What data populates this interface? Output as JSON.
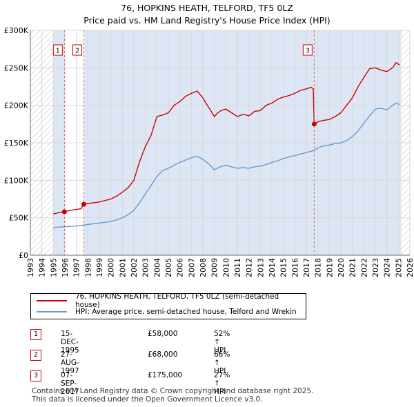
{
  "title": "76, HOPKINS HEATH, TELFORD, TF5 0LZ",
  "subtitle": "Price paid vs. HM Land Registry's House Price Index (HPI)",
  "colors": {
    "property": "#cc0000",
    "hpi": "#6699cc",
    "shade": "#dde6f5",
    "grid": "#d8d8d8",
    "marker_line": "#e06060"
  },
  "chart_data": {
    "type": "line",
    "title": "76, HOPKINS HEATH, TELFORD, TF5 0LZ",
    "subtitle": "Price paid vs. HM Land Registry's House Price Index (HPI)",
    "xlabel": "",
    "ylabel": "",
    "xlim": [
      1993.0,
      2026.0
    ],
    "ylim": [
      0,
      300000
    ],
    "x_ticks": [
      1993,
      1994,
      1995,
      1996,
      1997,
      1998,
      1999,
      2000,
      2001,
      2002,
      2003,
      2004,
      2005,
      2006,
      2007,
      2008,
      2009,
      2010,
      2011,
      2012,
      2013,
      2014,
      2015,
      2016,
      2017,
      2018,
      2019,
      2020,
      2021,
      2022,
      2023,
      2024,
      2025,
      2026
    ],
    "y_ticks": [
      0,
      50000,
      100000,
      150000,
      200000,
      250000,
      300000
    ],
    "y_tick_labels": [
      "£0",
      "£50K",
      "£100K",
      "£150K",
      "£200K",
      "£250K",
      "£300K"
    ],
    "hatched_ranges": [
      [
        1993.0,
        1995.0
      ],
      [
        2025.25,
        2026.0
      ]
    ],
    "shaded_ranges": [
      [
        1995.0,
        1995.96
      ],
      [
        1997.65,
        2017.68
      ],
      [
        2017.68,
        2025.25
      ]
    ],
    "grid": true,
    "series": [
      {
        "name": "76, HOPKINS HEATH, TELFORD, TF5 0LZ (semi-detached house)",
        "color": "#cc0000",
        "x": [
          1995.0,
          1995.5,
          1995.96,
          1996.5,
          1997.0,
          1997.4,
          1997.65,
          1998.0,
          1998.5,
          1999.0,
          1999.5,
          2000.0,
          2000.5,
          2001.0,
          2001.5,
          2002.0,
          2002.5,
          2003.0,
          2003.5,
          2004.0,
          2004.5,
          2005.0,
          2005.5,
          2006.0,
          2006.5,
          2007.0,
          2007.5,
          2008.0,
          2008.3,
          2008.6,
          2009.0,
          2009.3,
          2009.6,
          2010.0,
          2010.5,
          2011.0,
          2011.5,
          2012.0,
          2012.5,
          2013.0,
          2013.5,
          2014.0,
          2014.5,
          2015.0,
          2015.5,
          2016.0,
          2016.5,
          2017.0,
          2017.4,
          2017.6,
          2017.68,
          2018.0,
          2018.5,
          2019.0,
          2019.5,
          2020.0,
          2020.5,
          2021.0,
          2021.5,
          2022.0,
          2022.5,
          2023.0,
          2023.5,
          2024.0,
          2024.5,
          2024.8,
          2025.1
        ],
        "values": [
          55000,
          57000,
          58000,
          60000,
          61000,
          62000,
          68000,
          69000,
          70000,
          71000,
          73000,
          75000,
          79000,
          84000,
          90000,
          100000,
          125000,
          145000,
          160000,
          185000,
          187000,
          190000,
          200000,
          205000,
          212000,
          216000,
          219000,
          210000,
          202000,
          195000,
          185000,
          190000,
          193000,
          195000,
          190000,
          185000,
          188000,
          186000,
          192000,
          193000,
          200000,
          203000,
          208000,
          211000,
          213000,
          216000,
          220000,
          222000,
          224000,
          222000,
          175000,
          178000,
          180000,
          181000,
          185000,
          190000,
          200000,
          210000,
          225000,
          237000,
          249000,
          250000,
          247000,
          245000,
          250000,
          257000,
          254000
        ]
      },
      {
        "name": "HPI: Average price, semi-detached house, Telford and Wrekin",
        "color": "#6699cc",
        "x": [
          1995.0,
          1996.0,
          1997.0,
          1998.0,
          1999.0,
          2000.0,
          2000.5,
          2001.0,
          2001.5,
          2002.0,
          2002.5,
          2003.0,
          2003.5,
          2004.0,
          2004.5,
          2005.0,
          2005.5,
          2006.0,
          2006.5,
          2007.0,
          2007.5,
          2008.0,
          2008.5,
          2009.0,
          2009.5,
          2010.0,
          2010.5,
          2011.0,
          2011.5,
          2012.0,
          2012.5,
          2013.0,
          2013.5,
          2014.0,
          2014.5,
          2015.0,
          2015.5,
          2016.0,
          2016.5,
          2017.0,
          2017.5,
          2018.0,
          2018.5,
          2019.0,
          2019.5,
          2020.0,
          2020.5,
          2021.0,
          2021.5,
          2022.0,
          2022.5,
          2023.0,
          2023.5,
          2024.0,
          2024.5,
          2024.8,
          2025.1
        ],
        "values": [
          37000,
          38000,
          39000,
          41000,
          43000,
          45000,
          47000,
          50000,
          54000,
          60000,
          70000,
          82000,
          93000,
          105000,
          113000,
          116000,
          120000,
          124000,
          127000,
          130000,
          132000,
          128000,
          122000,
          114000,
          118000,
          120000,
          118000,
          116000,
          117000,
          116000,
          118000,
          119000,
          121000,
          124000,
          126000,
          129000,
          131000,
          133000,
          135000,
          137000,
          139000,
          143000,
          146000,
          147000,
          149000,
          150000,
          153000,
          158000,
          166000,
          176000,
          186000,
          195000,
          196000,
          194000,
          200000,
          203000,
          201000
        ]
      }
    ],
    "sales": [
      {
        "id": "1",
        "x": 1995.96,
        "value": 58000
      },
      {
        "id": "2",
        "x": 1997.65,
        "value": 68000
      },
      {
        "id": "3",
        "x": 2017.68,
        "value": 175000
      }
    ]
  },
  "legend": {
    "property_label": "76, HOPKINS HEATH, TELFORD, TF5 0LZ (semi-detached house)",
    "hpi_label": "HPI: Average price, semi-detached house, Telford and Wrekin"
  },
  "transactions": [
    {
      "num": "1",
      "date": "15-DEC-1995",
      "price": "£58,000",
      "hpi": "52% ↑ HPI"
    },
    {
      "num": "2",
      "date": "27-AUG-1997",
      "price": "£68,000",
      "hpi": "66% ↑ HPI"
    },
    {
      "num": "3",
      "date": "07-SEP-2017",
      "price": "£175,000",
      "hpi": "27% ↑ HPI"
    }
  ],
  "footer": {
    "line1": "Contains HM Land Registry data © Crown copyright and database right 2025.",
    "line2": "This data is licensed under the Open Government Licence v3.0."
  }
}
